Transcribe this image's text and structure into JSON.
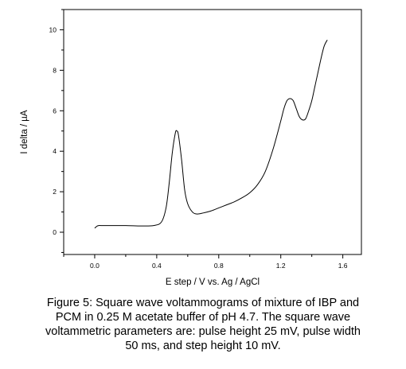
{
  "chart_data": {
    "type": "line",
    "xlabel": "E step / V vs. Ag / AgCl",
    "ylabel": "I delta / µA",
    "xlim": [
      -0.2,
      1.72
    ],
    "ylim": [
      -1.1,
      11.0
    ],
    "xticks": [
      0.0,
      0.4,
      0.8,
      1.2,
      1.6
    ],
    "xtick_labels": [
      "0.0",
      "0.4",
      "0.8",
      "1.2",
      "1.6"
    ],
    "yticks": [
      0,
      2,
      4,
      6,
      8,
      10
    ],
    "ytick_labels": [
      "0",
      "2",
      "4",
      "6",
      "8",
      "10"
    ],
    "grid": false,
    "legend": "none",
    "series": [
      {
        "color": "#000000",
        "x": [
          0.0,
          0.02,
          0.05,
          0.1,
          0.2,
          0.3,
          0.38,
          0.43,
          0.46,
          0.48,
          0.5,
          0.52,
          0.53,
          0.54,
          0.56,
          0.58,
          0.6,
          0.63,
          0.66,
          0.7,
          0.75,
          0.8,
          0.85,
          0.9,
          0.95,
          1.0,
          1.05,
          1.1,
          1.15,
          1.2,
          1.22,
          1.24,
          1.26,
          1.28,
          1.3,
          1.32,
          1.34,
          1.36,
          1.38,
          1.4,
          1.42,
          1.44,
          1.46,
          1.48,
          1.5
        ],
        "y": [
          0.2,
          0.32,
          0.33,
          0.33,
          0.33,
          0.31,
          0.33,
          0.5,
          1.2,
          2.4,
          3.9,
          4.9,
          5.0,
          4.8,
          3.6,
          2.1,
          1.4,
          1.0,
          0.9,
          0.95,
          1.05,
          1.2,
          1.35,
          1.5,
          1.7,
          1.95,
          2.35,
          3.0,
          4.1,
          5.5,
          6.1,
          6.5,
          6.6,
          6.5,
          6.1,
          5.7,
          5.55,
          5.6,
          6.0,
          6.5,
          7.2,
          7.9,
          8.6,
          9.2,
          9.5
        ]
      }
    ]
  },
  "caption": {
    "lines": [
      "Figure 5: Square wave voltammograms of mixture of IBP and",
      "PCM in 0.25 M acetate buffer of pH 4.7. The square wave",
      "voltammetric parameters are:  pulse height 25 mV, pulse width",
      "50 ms, and step height 10 mV."
    ]
  }
}
